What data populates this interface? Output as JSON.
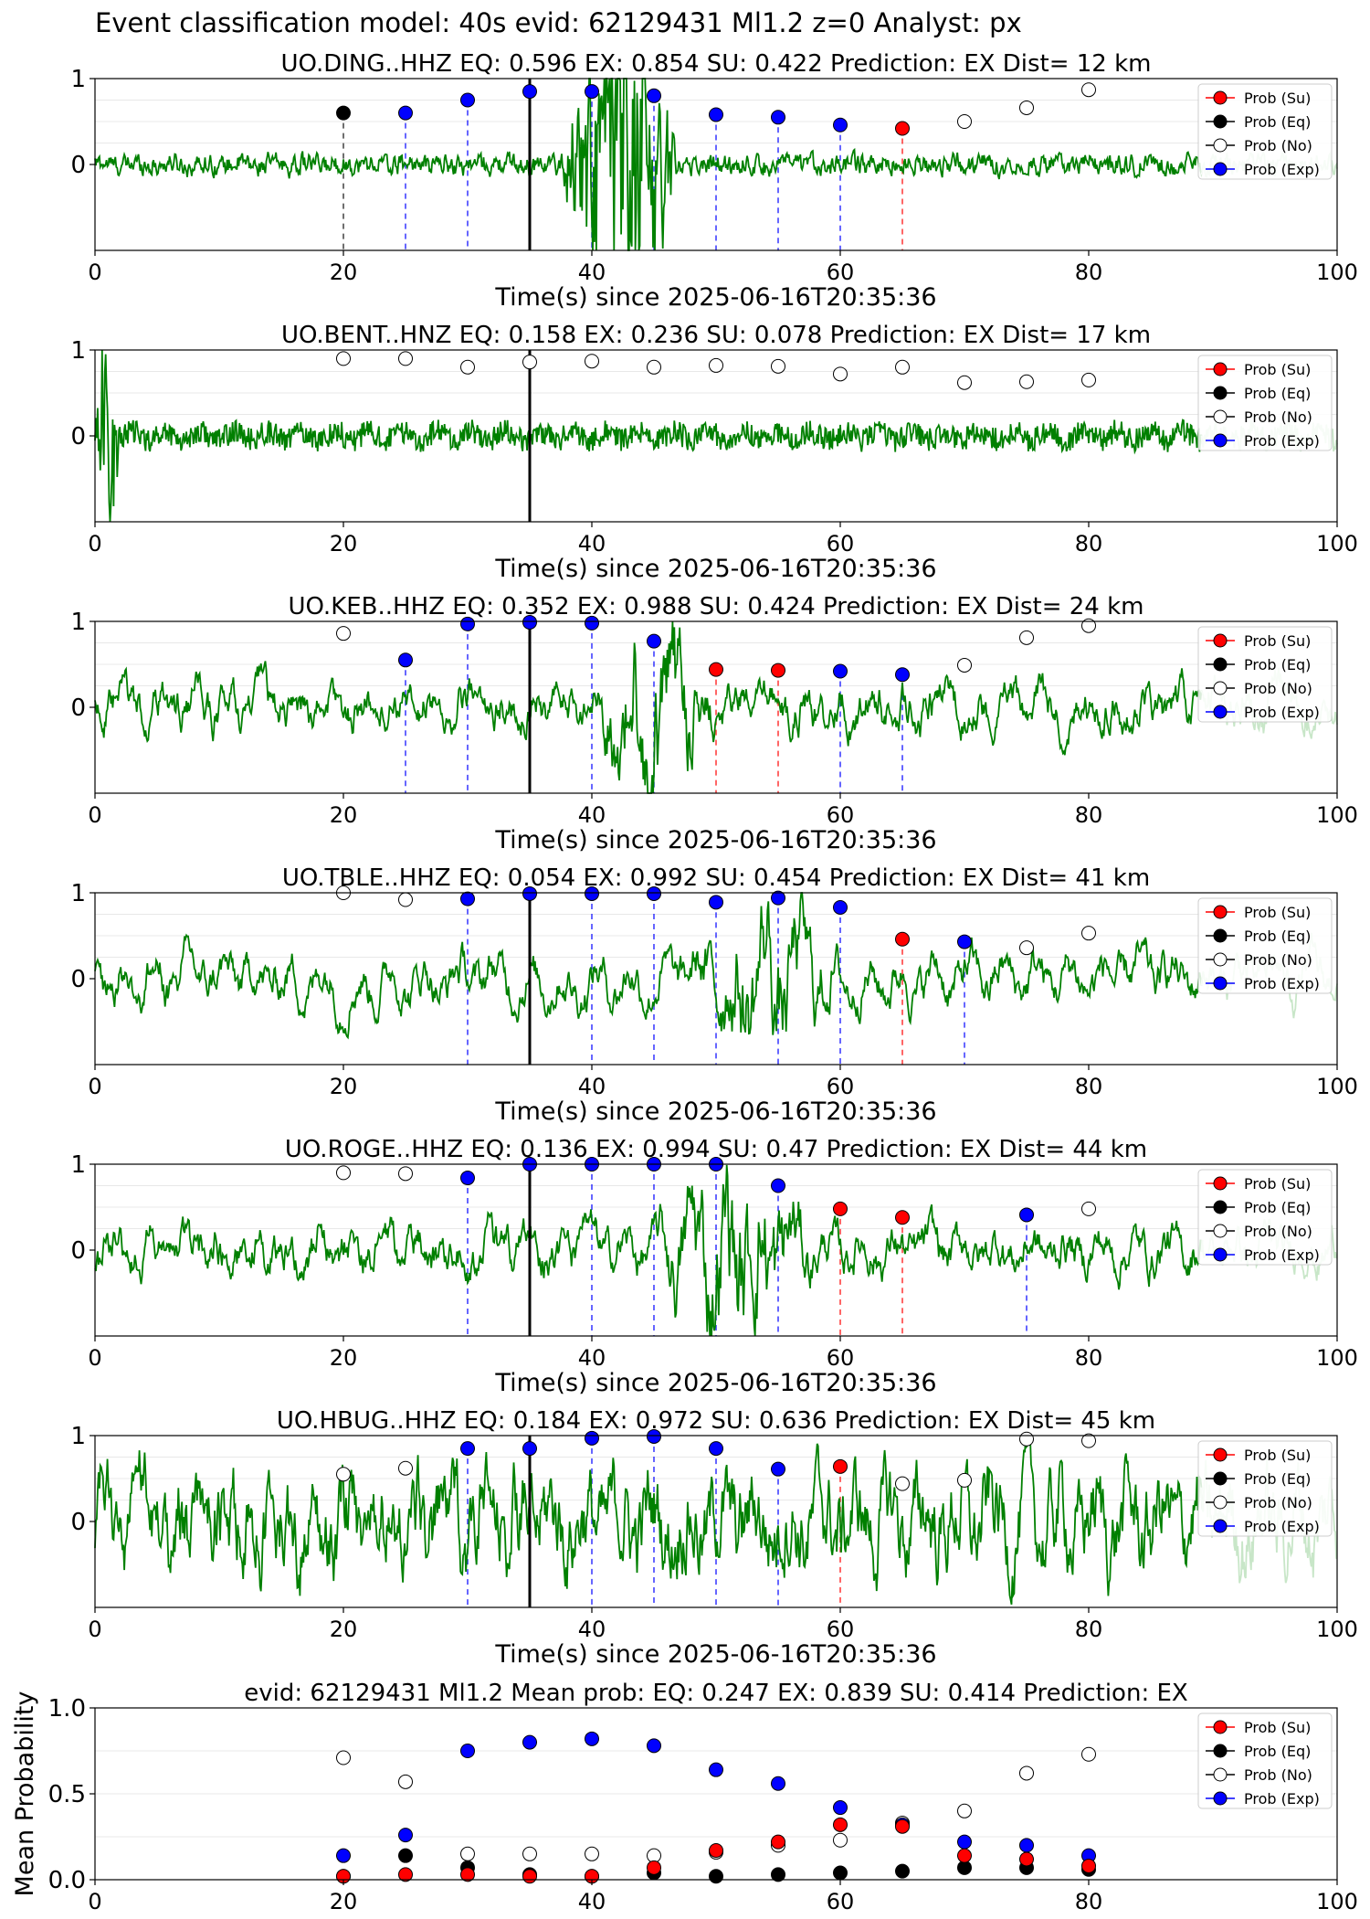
{
  "suptitle": "Event classification model: 40s evid: 62129431 Ml1.2 z=0 Analyst: px",
  "colors": {
    "su": "#ff0000",
    "eq": "#000000",
    "ex": "#0000ff",
    "trace": "#008000",
    "trace_tail": "#c8e6c8"
  },
  "legend": {
    "su": "Prob (Su)",
    "eq": "Prob (Eq)",
    "no": "Prob (No)",
    "ex": "Prob (Exp)"
  },
  "chart_data": [
    {
      "type": "line",
      "title": "UO.DING..HHZ   EQ: 0.596  EX: 0.854  SU: 0.422   Prediction: EX    Dist= 12 km",
      "xlabel": "Time(s) since 2025-06-16T20:35:36",
      "xlim": [
        0,
        100
      ],
      "ylim": [
        -1,
        1
      ],
      "xticks": [
        "0",
        "20",
        "40",
        "60",
        "80",
        "100"
      ],
      "yticks": [
        "1",
        "0"
      ],
      "pick_line": 35,
      "grid": true,
      "legend_position": "upper-right",
      "trace": {
        "amp": 0.06,
        "burst_start": 37.5,
        "burst_end": 47,
        "burst_amp": 1.0,
        "smooth": 0.5
      },
      "points": [
        {
          "x": 20,
          "p": 0.6,
          "c": "eq"
        },
        {
          "x": 25,
          "p": 0.6,
          "c": "ex"
        },
        {
          "x": 30,
          "p": 0.75,
          "c": "ex"
        },
        {
          "x": 35,
          "p": 0.85,
          "c": "ex"
        },
        {
          "x": 40,
          "p": 0.85,
          "c": "ex"
        },
        {
          "x": 45,
          "p": 0.8,
          "c": "ex"
        },
        {
          "x": 50,
          "p": 0.58,
          "c": "ex"
        },
        {
          "x": 55,
          "p": 0.55,
          "c": "ex"
        },
        {
          "x": 60,
          "p": 0.46,
          "c": "ex"
        },
        {
          "x": 65,
          "p": 0.42,
          "c": "su"
        },
        {
          "x": 70,
          "p": 0.5,
          "c": "no"
        },
        {
          "x": 75,
          "p": 0.66,
          "c": "no"
        },
        {
          "x": 80,
          "p": 0.87,
          "c": "no"
        }
      ]
    },
    {
      "type": "line",
      "title": "UO.BENT..HNZ   EQ: 0.158  EX: 0.236  SU: 0.078   Prediction: EX    Dist= 17 km",
      "xlabel": "Time(s) since 2025-06-16T20:35:36",
      "xlim": [
        0,
        100
      ],
      "ylim": [
        -1,
        1
      ],
      "xticks": [
        "0",
        "20",
        "40",
        "60",
        "80",
        "100"
      ],
      "yticks": [
        "1",
        "0"
      ],
      "pick_line": 35,
      "grid": true,
      "legend_position": "upper-right",
      "trace": {
        "amp": 0.14,
        "burst_start": 0,
        "burst_end": 2,
        "burst_amp": 0.9,
        "smooth": 0.0
      },
      "points": [
        {
          "x": 20,
          "p": 0.9,
          "c": "no"
        },
        {
          "x": 25,
          "p": 0.9,
          "c": "no"
        },
        {
          "x": 30,
          "p": 0.8,
          "c": "no"
        },
        {
          "x": 35,
          "p": 0.86,
          "c": "no"
        },
        {
          "x": 40,
          "p": 0.87,
          "c": "no"
        },
        {
          "x": 45,
          "p": 0.8,
          "c": "no"
        },
        {
          "x": 50,
          "p": 0.82,
          "c": "no"
        },
        {
          "x": 55,
          "p": 0.81,
          "c": "no"
        },
        {
          "x": 60,
          "p": 0.72,
          "c": "no"
        },
        {
          "x": 65,
          "p": 0.8,
          "c": "no"
        },
        {
          "x": 70,
          "p": 0.62,
          "c": "no"
        },
        {
          "x": 75,
          "p": 0.63,
          "c": "no"
        },
        {
          "x": 80,
          "p": 0.65,
          "c": "no"
        }
      ]
    },
    {
      "type": "line",
      "title": "UO.KEB..HHZ   EQ: 0.352  EX: 0.988  SU: 0.424   Prediction: EX    Dist= 24 km",
      "xlabel": "Time(s) since 2025-06-16T20:35:36",
      "xlim": [
        0,
        100
      ],
      "ylim": [
        -1,
        1
      ],
      "xticks": [
        "0",
        "20",
        "40",
        "60",
        "80",
        "100"
      ],
      "yticks": [
        "1",
        "0"
      ],
      "pick_line": 35,
      "grid": true,
      "legend_position": "upper-right",
      "trace": {
        "amp": 0.3,
        "burst_start": 40,
        "burst_end": 50,
        "burst_amp": 0.8,
        "smooth": 0.85
      },
      "points": [
        {
          "x": 20,
          "p": 0.86,
          "c": "no"
        },
        {
          "x": 25,
          "p": 0.55,
          "c": "ex"
        },
        {
          "x": 30,
          "p": 0.97,
          "c": "ex"
        },
        {
          "x": 35,
          "p": 0.99,
          "c": "ex"
        },
        {
          "x": 40,
          "p": 0.98,
          "c": "ex"
        },
        {
          "x": 45,
          "p": 0.77,
          "c": "ex"
        },
        {
          "x": 50,
          "p": 0.44,
          "c": "su"
        },
        {
          "x": 55,
          "p": 0.43,
          "c": "su"
        },
        {
          "x": 60,
          "p": 0.42,
          "c": "ex"
        },
        {
          "x": 65,
          "p": 0.38,
          "c": "ex"
        },
        {
          "x": 70,
          "p": 0.49,
          "c": "no"
        },
        {
          "x": 75,
          "p": 0.81,
          "c": "no"
        },
        {
          "x": 80,
          "p": 0.95,
          "c": "no"
        }
      ]
    },
    {
      "type": "line",
      "title": "UO.TBLE..HHZ   EQ: 0.054  EX: 0.992  SU: 0.454   Prediction: EX    Dist= 41 km",
      "xlabel": "Time(s) since 2025-06-16T20:35:36",
      "xlim": [
        0,
        100
      ],
      "ylim": [
        -1,
        1
      ],
      "xticks": [
        "0",
        "20",
        "40",
        "60",
        "80",
        "100"
      ],
      "yticks": [
        "1",
        "0"
      ],
      "pick_line": 35,
      "grid": true,
      "legend_position": "upper-right",
      "trace": {
        "amp": 0.38,
        "burst_start": 48,
        "burst_end": 60,
        "burst_amp": 0.75,
        "smooth": 0.88
      },
      "points": [
        {
          "x": 20,
          "p": 1.0,
          "c": "no"
        },
        {
          "x": 25,
          "p": 0.92,
          "c": "no"
        },
        {
          "x": 30,
          "p": 0.93,
          "c": "ex"
        },
        {
          "x": 35,
          "p": 0.99,
          "c": "ex"
        },
        {
          "x": 40,
          "p": 0.99,
          "c": "ex"
        },
        {
          "x": 45,
          "p": 0.99,
          "c": "ex"
        },
        {
          "x": 50,
          "p": 0.89,
          "c": "ex"
        },
        {
          "x": 55,
          "p": 0.94,
          "c": "ex"
        },
        {
          "x": 60,
          "p": 0.83,
          "c": "ex"
        },
        {
          "x": 65,
          "p": 0.46,
          "c": "su"
        },
        {
          "x": 70,
          "p": 0.43,
          "c": "ex"
        },
        {
          "x": 75,
          "p": 0.36,
          "c": "no"
        },
        {
          "x": 80,
          "p": 0.53,
          "c": "no"
        }
      ]
    },
    {
      "type": "line",
      "title": "UO.ROGE..HHZ   EQ: 0.136  EX: 0.994  SU: 0.47   Prediction: EX    Dist= 44 km",
      "xlabel": "Time(s) since 2025-06-16T20:35:36",
      "xlim": [
        0,
        100
      ],
      "ylim": [
        -1,
        1
      ],
      "xticks": [
        "0",
        "20",
        "40",
        "60",
        "80",
        "100"
      ],
      "yticks": [
        "1",
        "0"
      ],
      "pick_line": 35,
      "grid": true,
      "legend_position": "upper-right",
      "trace": {
        "amp": 0.3,
        "burst_start": 45,
        "burst_end": 58,
        "burst_amp": 0.85,
        "smooth": 0.85
      },
      "points": [
        {
          "x": 20,
          "p": 0.9,
          "c": "no"
        },
        {
          "x": 25,
          "p": 0.89,
          "c": "no"
        },
        {
          "x": 30,
          "p": 0.84,
          "c": "ex"
        },
        {
          "x": 35,
          "p": 1.0,
          "c": "ex"
        },
        {
          "x": 40,
          "p": 1.0,
          "c": "ex"
        },
        {
          "x": 45,
          "p": 1.0,
          "c": "ex"
        },
        {
          "x": 50,
          "p": 1.0,
          "c": "ex"
        },
        {
          "x": 55,
          "p": 0.75,
          "c": "ex"
        },
        {
          "x": 60,
          "p": 0.48,
          "c": "su"
        },
        {
          "x": 65,
          "p": 0.38,
          "c": "su"
        },
        {
          "x": 75,
          "p": 0.41,
          "c": "ex"
        },
        {
          "x": 80,
          "p": 0.48,
          "c": "no"
        }
      ]
    },
    {
      "type": "line",
      "title": "UO.HBUG..HHZ   EQ: 0.184  EX: 0.972  SU: 0.636   Prediction: EX    Dist= 45 km",
      "xlabel": "Time(s) since 2025-06-16T20:35:36",
      "xlim": [
        0,
        100
      ],
      "ylim": [
        -1,
        1
      ],
      "xticks": [
        "0",
        "20",
        "40",
        "60",
        "80",
        "100"
      ],
      "yticks": [
        "1",
        "0"
      ],
      "pick_line": 35,
      "grid": true,
      "legend_position": "upper-right",
      "trace": {
        "amp": 0.55,
        "burst_start": 0,
        "burst_end": 0,
        "burst_amp": 0.0,
        "smooth": 0.8
      },
      "points": [
        {
          "x": 20,
          "p": 0.55,
          "c": "no"
        },
        {
          "x": 25,
          "p": 0.62,
          "c": "no"
        },
        {
          "x": 30,
          "p": 0.85,
          "c": "ex"
        },
        {
          "x": 35,
          "p": 0.85,
          "c": "ex"
        },
        {
          "x": 40,
          "p": 0.97,
          "c": "ex"
        },
        {
          "x": 45,
          "p": 0.99,
          "c": "ex"
        },
        {
          "x": 50,
          "p": 0.85,
          "c": "ex"
        },
        {
          "x": 55,
          "p": 0.61,
          "c": "ex"
        },
        {
          "x": 60,
          "p": 0.64,
          "c": "su"
        },
        {
          "x": 65,
          "p": 0.44,
          "c": "no"
        },
        {
          "x": 70,
          "p": 0.48,
          "c": "no"
        },
        {
          "x": 75,
          "p": 0.96,
          "c": "no"
        },
        {
          "x": 80,
          "p": 0.94,
          "c": "no"
        }
      ]
    },
    {
      "type": "scatter",
      "title": "evid: 62129431  Ml1.2   Mean prob:   EQ: 0.247  EX: 0.839  SU: 0.414   Prediction: EX",
      "xlabel": "",
      "ylabel": "Mean Probability",
      "xlim": [
        0,
        100
      ],
      "ylim": [
        0,
        1
      ],
      "xticks": [
        "0",
        "20",
        "40",
        "60",
        "80",
        "100"
      ],
      "yticks": [
        "1.0",
        "0.5",
        "0.0"
      ],
      "grid": true,
      "legend_position": "upper-right",
      "x": [
        20,
        25,
        30,
        35,
        40,
        45,
        50,
        55,
        60,
        65,
        70,
        75,
        80
      ],
      "series": [
        {
          "name": "Prob (No)",
          "key": "no",
          "values": [
            0.71,
            0.57,
            0.15,
            0.15,
            0.15,
            0.14,
            0.16,
            0.2,
            0.23,
            0.33,
            0.4,
            0.62,
            0.73
          ]
        },
        {
          "name": "Prob (Eq)",
          "key": "eq",
          "values": [
            0.02,
            0.14,
            0.07,
            0.03,
            0.02,
            0.04,
            0.02,
            0.03,
            0.04,
            0.05,
            0.07,
            0.07,
            0.06
          ]
        },
        {
          "name": "Prob (Exp)",
          "key": "ex",
          "values": [
            0.14,
            0.26,
            0.75,
            0.8,
            0.82,
            0.78,
            0.64,
            0.56,
            0.42,
            0.32,
            0.22,
            0.2,
            0.14
          ]
        },
        {
          "name": "Prob (Su)",
          "key": "su",
          "values": [
            0.02,
            0.03,
            0.03,
            0.02,
            0.02,
            0.07,
            0.17,
            0.22,
            0.32,
            0.31,
            0.14,
            0.12,
            0.08
          ]
        }
      ]
    }
  ]
}
